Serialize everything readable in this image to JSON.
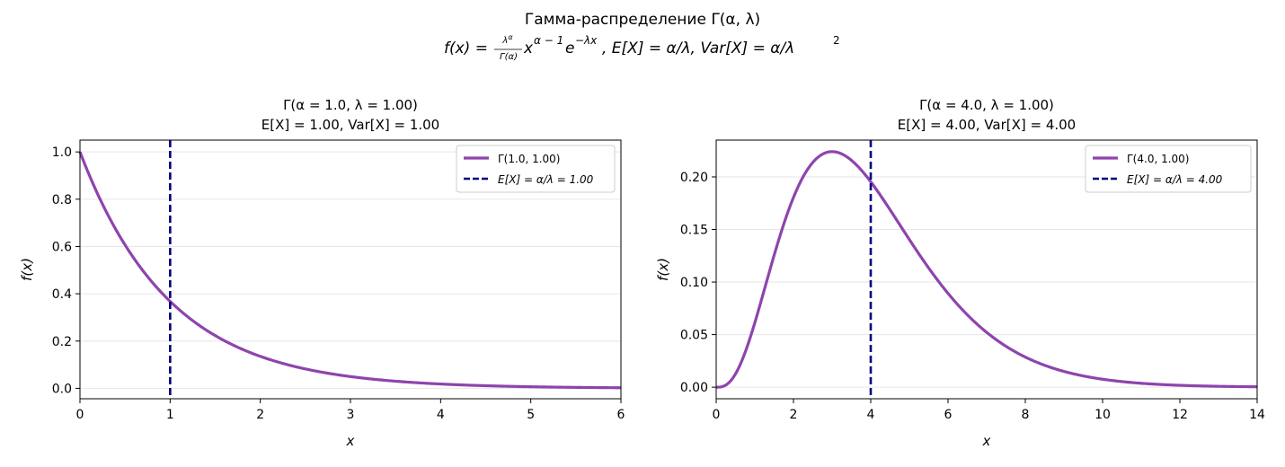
{
  "suptitle": {
    "line1": "Гамма-распределение Γ(α,  λ)",
    "line2_pre": "f(x) = ",
    "line2_frac_num": "λ",
    "line2_frac_num_sup": "α",
    "line2_frac_den": "Γ(α)",
    "line2_x": "x",
    "line2_x_sup": "α − 1",
    "line2_e": "e",
    "line2_e_sup": "−λx",
    "line2_rest": ",  E[X] = α/λ,  Var[X] = α/λ",
    "line2_rest_sup": "2"
  },
  "colors": {
    "curve": "#8e44ad",
    "mean": "#000080",
    "grid": "#e6e6e6"
  },
  "chart_data": [
    {
      "type": "line",
      "title_line1": "Γ(α = 1.0,  λ = 1.00)",
      "title_line2": "E[X] = 1.00,  Var[X] = 1.00",
      "xlabel": "x",
      "ylabel": "f(x)",
      "xlim": [
        0,
        6
      ],
      "ylim": [
        -0.044,
        1.05
      ],
      "xticks": [
        0,
        1,
        2,
        3,
        4,
        5,
        6
      ],
      "xtick_labels": [
        "0",
        "1",
        "2",
        "3",
        "4",
        "5",
        "6"
      ],
      "yticks": [
        0.0,
        0.2,
        0.4,
        0.6,
        0.8,
        1.0
      ],
      "ytick_labels": [
        "0.0",
        "0.2",
        "0.4",
        "0.6",
        "0.8",
        "1.0"
      ],
      "grid": "y",
      "legend_position": "upper right",
      "series": [
        {
          "name": "Γ(1.0,  1.00)",
          "style": "solid",
          "alpha": 1.0,
          "lambda": 1.0,
          "x": [
            0,
            0.25,
            0.5,
            0.75,
            1,
            1.5,
            2,
            2.5,
            3,
            4,
            5,
            6
          ],
          "y": [
            1.0,
            0.779,
            0.607,
            0.472,
            0.368,
            0.223,
            0.135,
            0.082,
            0.05,
            0.018,
            0.007,
            0.002
          ]
        },
        {
          "name": "E[X] = α/λ = 1.00",
          "style": "dashed",
          "x_value": 1.0
        }
      ]
    },
    {
      "type": "line",
      "title_line1": "Γ(α = 4.0,  λ = 1.00)",
      "title_line2": "E[X] = 4.00,  Var[X] = 4.00",
      "xlabel": "x",
      "ylabel": "f(x)",
      "xlim": [
        0,
        14
      ],
      "ylim": [
        -0.011,
        0.235
      ],
      "xticks": [
        0,
        2,
        4,
        6,
        8,
        10,
        12,
        14
      ],
      "xtick_labels": [
        "0",
        "2",
        "4",
        "6",
        "8",
        "10",
        "12",
        "14"
      ],
      "yticks": [
        0.0,
        0.05,
        0.1,
        0.15,
        0.2
      ],
      "ytick_labels": [
        "0.00",
        "0.05",
        "0.10",
        "0.15",
        "0.20"
      ],
      "grid": "y",
      "legend_position": "upper right",
      "series": [
        {
          "name": "Γ(4.0,  1.00)",
          "style": "solid",
          "alpha": 4.0,
          "lambda": 1.0,
          "x": [
            0,
            1,
            2,
            3,
            4,
            5,
            6,
            7,
            8,
            10,
            12,
            14
          ],
          "y": [
            0.0,
            0.061,
            0.18,
            0.224,
            0.195,
            0.14,
            0.089,
            0.052,
            0.029,
            0.008,
            0.002,
            0.0004
          ]
        },
        {
          "name": "E[X] = α/λ = 4.00",
          "style": "dashed",
          "x_value": 4.0
        }
      ]
    }
  ]
}
